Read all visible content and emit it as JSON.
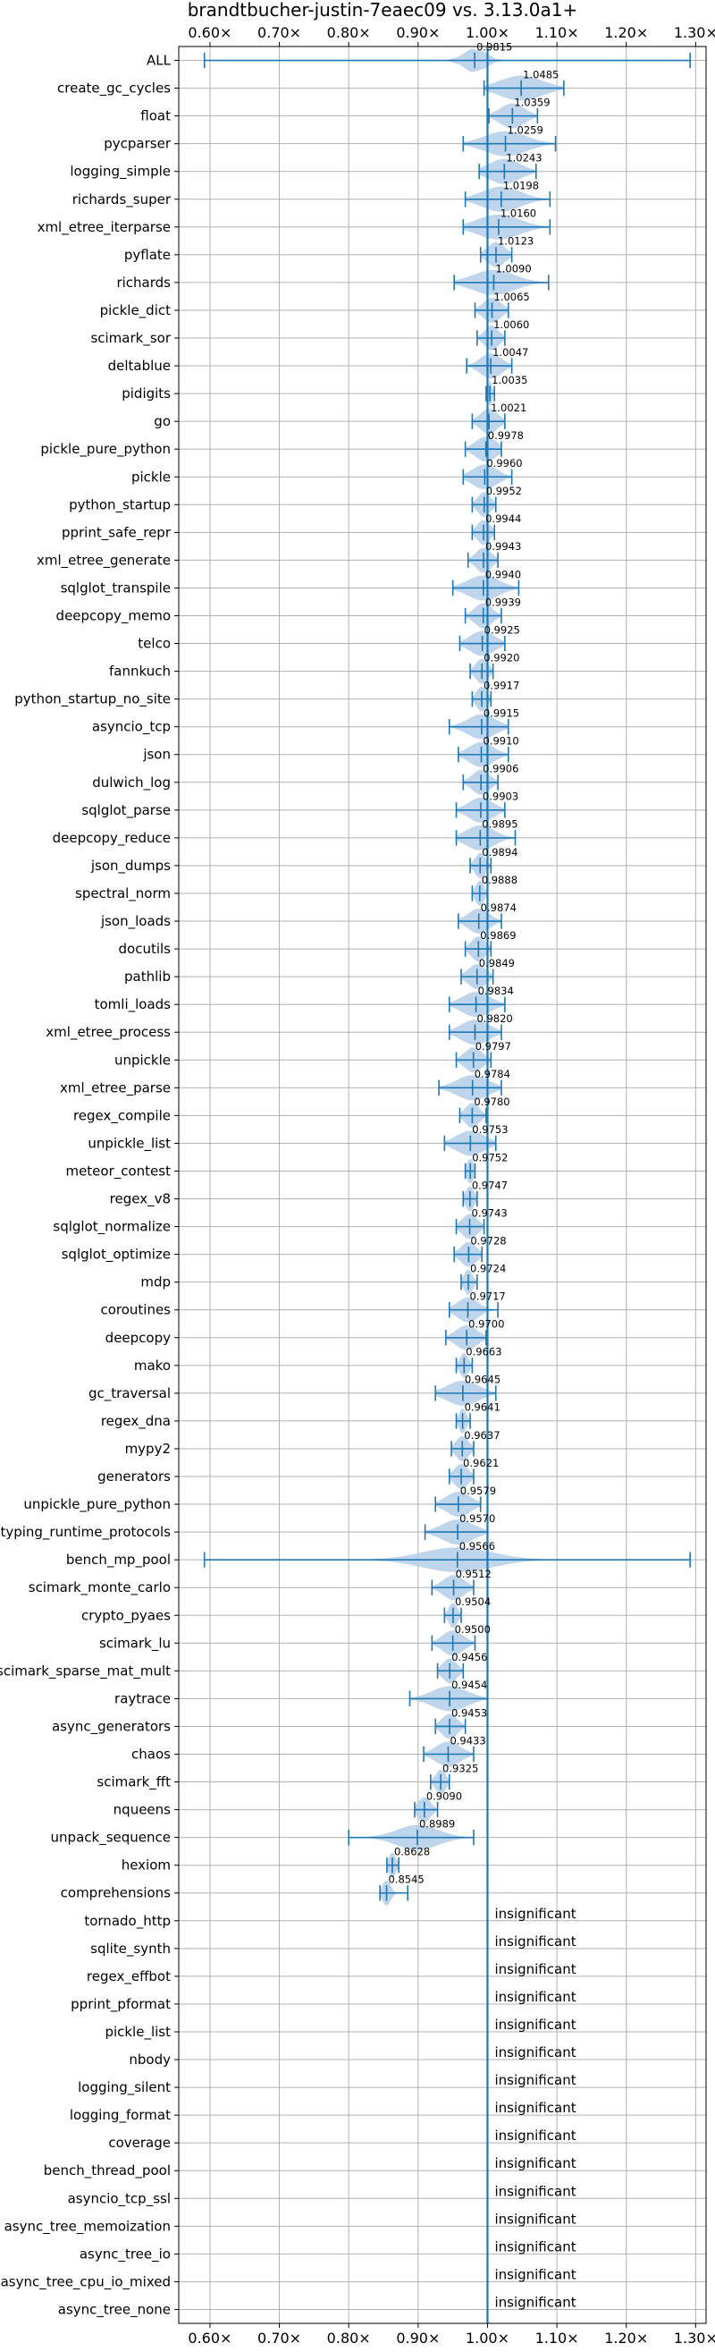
{
  "chart_data": {
    "type": "violin",
    "title": "brandtbucher-justin-7eaec09 vs. 3.13.0a1+",
    "xlabel": "",
    "ylabel": "",
    "xlim": [
      0.555,
      1.315
    ],
    "xticks": [
      0.6,
      0.7,
      0.8,
      0.9,
      1.0,
      1.1,
      1.2,
      1.3
    ],
    "xtick_labels": [
      "0.60×",
      "0.70×",
      "0.80×",
      "0.90×",
      "1.00×",
      "1.10×",
      "1.20×",
      "1.30×"
    ],
    "grid": true,
    "reference_line": 1.0,
    "colors": {
      "fill": "#b7d0ea",
      "line": "#1f77b4",
      "grid": "#b0b0b0"
    },
    "insignificant_label": "insignificant",
    "benchmarks": [
      {
        "name": "ALL",
        "mean": 0.9815,
        "min": 0.592,
        "max": 1.292,
        "spread": 0.03,
        "label": "0.9815"
      },
      {
        "name": "create_gc_cycles",
        "mean": 1.0485,
        "min": 0.995,
        "max": 1.11,
        "spread": 0.06,
        "label": "1.0485"
      },
      {
        "name": "float",
        "mean": 1.0359,
        "min": 1.002,
        "max": 1.072,
        "spread": 0.035,
        "label": "1.0359"
      },
      {
        "name": "pycparser",
        "mean": 1.0259,
        "min": 0.965,
        "max": 1.098,
        "spread": 0.06,
        "label": "1.0259"
      },
      {
        "name": "logging_simple",
        "mean": 1.0243,
        "min": 0.988,
        "max": 1.07,
        "spread": 0.045,
        "label": "1.0243"
      },
      {
        "name": "richards_super",
        "mean": 1.0198,
        "min": 0.968,
        "max": 1.09,
        "spread": 0.055,
        "label": "1.0198"
      },
      {
        "name": "xml_etree_iterparse",
        "mean": 1.016,
        "min": 0.965,
        "max": 1.09,
        "spread": 0.06,
        "label": "1.0160"
      },
      {
        "name": "pyflate",
        "mean": 1.0123,
        "min": 0.99,
        "max": 1.035,
        "spread": 0.025,
        "label": "1.0123"
      },
      {
        "name": "richards",
        "mean": 1.009,
        "min": 0.952,
        "max": 1.088,
        "spread": 0.06,
        "label": "1.0090"
      },
      {
        "name": "pickle_dict",
        "mean": 1.0065,
        "min": 0.982,
        "max": 1.03,
        "spread": 0.025,
        "label": "1.0065"
      },
      {
        "name": "scimark_sor",
        "mean": 1.006,
        "min": 0.985,
        "max": 1.025,
        "spread": 0.02,
        "label": "1.0060"
      },
      {
        "name": "deltablue",
        "mean": 1.0047,
        "min": 0.97,
        "max": 1.035,
        "spread": 0.03,
        "label": "1.0047"
      },
      {
        "name": "pidigits",
        "mean": 1.0035,
        "min": 0.998,
        "max": 1.01,
        "spread": 0.006,
        "label": "1.0035"
      },
      {
        "name": "go",
        "mean": 1.0021,
        "min": 0.978,
        "max": 1.025,
        "spread": 0.025,
        "label": "1.0021"
      },
      {
        "name": "pickle_pure_python",
        "mean": 0.9978,
        "min": 0.968,
        "max": 1.02,
        "spread": 0.03,
        "label": "0.9978"
      },
      {
        "name": "pickle",
        "mean": 0.996,
        "min": 0.965,
        "max": 1.035,
        "spread": 0.035,
        "label": "0.9960"
      },
      {
        "name": "python_startup",
        "mean": 0.9952,
        "min": 0.978,
        "max": 1.012,
        "spread": 0.018,
        "label": "0.9952"
      },
      {
        "name": "pprint_safe_repr",
        "mean": 0.9944,
        "min": 0.978,
        "max": 1.01,
        "spread": 0.018,
        "label": "0.9944"
      },
      {
        "name": "xml_etree_generate",
        "mean": 0.9943,
        "min": 0.972,
        "max": 1.015,
        "spread": 0.022,
        "label": "0.9943"
      },
      {
        "name": "sqlglot_transpile",
        "mean": 0.994,
        "min": 0.95,
        "max": 1.045,
        "spread": 0.045,
        "label": "0.9940"
      },
      {
        "name": "deepcopy_memo",
        "mean": 0.9939,
        "min": 0.968,
        "max": 1.02,
        "spread": 0.025,
        "label": "0.9939"
      },
      {
        "name": "telco",
        "mean": 0.9925,
        "min": 0.96,
        "max": 1.025,
        "spread": 0.035,
        "label": "0.9925"
      },
      {
        "name": "fannkuch",
        "mean": 0.992,
        "min": 0.975,
        "max": 1.008,
        "spread": 0.018,
        "label": "0.9920"
      },
      {
        "name": "python_startup_no_site",
        "mean": 0.9917,
        "min": 0.978,
        "max": 1.005,
        "spread": 0.015,
        "label": "0.9917"
      },
      {
        "name": "asyncio_tcp",
        "mean": 0.9915,
        "min": 0.945,
        "max": 1.03,
        "spread": 0.04,
        "label": "0.9915"
      },
      {
        "name": "json",
        "mean": 0.991,
        "min": 0.958,
        "max": 1.03,
        "spread": 0.035,
        "label": "0.9910"
      },
      {
        "name": "dulwich_log",
        "mean": 0.9906,
        "min": 0.965,
        "max": 1.015,
        "spread": 0.025,
        "label": "0.9906"
      },
      {
        "name": "sqlglot_parse",
        "mean": 0.9903,
        "min": 0.955,
        "max": 1.025,
        "spread": 0.035,
        "label": "0.9903"
      },
      {
        "name": "deepcopy_reduce",
        "mean": 0.9895,
        "min": 0.955,
        "max": 1.04,
        "spread": 0.04,
        "label": "0.9895"
      },
      {
        "name": "json_dumps",
        "mean": 0.9894,
        "min": 0.975,
        "max": 1.005,
        "spread": 0.015,
        "label": "0.9894"
      },
      {
        "name": "spectral_norm",
        "mean": 0.9888,
        "min": 0.978,
        "max": 1.0,
        "spread": 0.012,
        "label": "0.9888"
      },
      {
        "name": "json_loads",
        "mean": 0.9874,
        "min": 0.958,
        "max": 1.02,
        "spread": 0.03,
        "label": "0.9874"
      },
      {
        "name": "docutils",
        "mean": 0.9869,
        "min": 0.968,
        "max": 1.005,
        "spread": 0.02,
        "label": "0.9869"
      },
      {
        "name": "pathlib",
        "mean": 0.9849,
        "min": 0.962,
        "max": 1.008,
        "spread": 0.025,
        "label": "0.9849"
      },
      {
        "name": "tomli_loads",
        "mean": 0.9834,
        "min": 0.945,
        "max": 1.025,
        "spread": 0.04,
        "label": "0.9834"
      },
      {
        "name": "xml_etree_process",
        "mean": 0.982,
        "min": 0.945,
        "max": 1.02,
        "spread": 0.04,
        "label": "0.9820"
      },
      {
        "name": "unpickle",
        "mean": 0.9797,
        "min": 0.955,
        "max": 1.005,
        "spread": 0.025,
        "label": "0.9797"
      },
      {
        "name": "xml_etree_parse",
        "mean": 0.9784,
        "min": 0.93,
        "max": 1.02,
        "spread": 0.045,
        "label": "0.9784"
      },
      {
        "name": "regex_compile",
        "mean": 0.978,
        "min": 0.96,
        "max": 0.998,
        "spread": 0.02,
        "label": "0.9780"
      },
      {
        "name": "unpickle_list",
        "mean": 0.9753,
        "min": 0.938,
        "max": 1.012,
        "spread": 0.04,
        "label": "0.9753"
      },
      {
        "name": "meteor_contest",
        "mean": 0.9752,
        "min": 0.968,
        "max": 0.982,
        "spread": 0.01,
        "label": "0.9752"
      },
      {
        "name": "regex_v8",
        "mean": 0.9747,
        "min": 0.965,
        "max": 0.985,
        "spread": 0.012,
        "label": "0.9747"
      },
      {
        "name": "sqlglot_normalize",
        "mean": 0.9743,
        "min": 0.955,
        "max": 0.995,
        "spread": 0.022,
        "label": "0.9743"
      },
      {
        "name": "sqlglot_optimize",
        "mean": 0.9728,
        "min": 0.952,
        "max": 0.992,
        "spread": 0.022,
        "label": "0.9728"
      },
      {
        "name": "mdp",
        "mean": 0.9724,
        "min": 0.962,
        "max": 0.985,
        "spread": 0.012,
        "label": "0.9724"
      },
      {
        "name": "coroutines",
        "mean": 0.9717,
        "min": 0.945,
        "max": 1.015,
        "spread": 0.03,
        "label": "0.9717"
      },
      {
        "name": "deepcopy",
        "mean": 0.97,
        "min": 0.94,
        "max": 0.998,
        "spread": 0.03,
        "label": "0.9700"
      },
      {
        "name": "mako",
        "mean": 0.9663,
        "min": 0.955,
        "max": 0.978,
        "spread": 0.012,
        "label": "0.9663"
      },
      {
        "name": "gc_traversal",
        "mean": 0.9645,
        "min": 0.925,
        "max": 1.012,
        "spread": 0.045,
        "label": "0.9645"
      },
      {
        "name": "regex_dna",
        "mean": 0.9641,
        "min": 0.955,
        "max": 0.975,
        "spread": 0.01,
        "label": "0.9641"
      },
      {
        "name": "mypy2",
        "mean": 0.9637,
        "min": 0.948,
        "max": 0.98,
        "spread": 0.018,
        "label": "0.9637"
      },
      {
        "name": "generators",
        "mean": 0.9621,
        "min": 0.945,
        "max": 0.98,
        "spread": 0.02,
        "label": "0.9621"
      },
      {
        "name": "unpickle_pure_python",
        "mean": 0.9579,
        "min": 0.925,
        "max": 0.99,
        "spread": 0.035,
        "label": "0.9579"
      },
      {
        "name": "typing_runtime_protocols",
        "mean": 0.957,
        "min": 0.91,
        "max": 1.0,
        "spread": 0.045,
        "label": "0.9570"
      },
      {
        "name": "bench_mp_pool",
        "mean": 0.9566,
        "min": 0.592,
        "max": 1.292,
        "spread": 0.1,
        "label": "0.9566"
      },
      {
        "name": "scimark_monte_carlo",
        "mean": 0.9512,
        "min": 0.92,
        "max": 0.98,
        "spread": 0.03,
        "label": "0.9512"
      },
      {
        "name": "crypto_pyaes",
        "mean": 0.9504,
        "min": 0.938,
        "max": 0.962,
        "spread": 0.012,
        "label": "0.9504"
      },
      {
        "name": "scimark_lu",
        "mean": 0.95,
        "min": 0.92,
        "max": 0.982,
        "spread": 0.03,
        "label": "0.9500"
      },
      {
        "name": "scimark_sparse_mat_mult",
        "mean": 0.9456,
        "min": 0.928,
        "max": 0.965,
        "spread": 0.02,
        "label": "0.9456"
      },
      {
        "name": "raytrace",
        "mean": 0.9454,
        "min": 0.888,
        "max": 1.0,
        "spread": 0.05,
        "label": "0.9454"
      },
      {
        "name": "async_generators",
        "mean": 0.9453,
        "min": 0.925,
        "max": 0.968,
        "spread": 0.022,
        "label": "0.9453"
      },
      {
        "name": "chaos",
        "mean": 0.9433,
        "min": 0.908,
        "max": 0.98,
        "spread": 0.035,
        "label": "0.9433"
      },
      {
        "name": "scimark_fft",
        "mean": 0.9325,
        "min": 0.918,
        "max": 0.945,
        "spread": 0.014,
        "label": "0.9325"
      },
      {
        "name": "nqueens",
        "mean": 0.909,
        "min": 0.895,
        "max": 0.928,
        "spread": 0.018,
        "label": "0.9090"
      },
      {
        "name": "unpack_sequence",
        "mean": 0.8989,
        "min": 0.8,
        "max": 0.98,
        "spread": 0.06,
        "label": "0.8989"
      },
      {
        "name": "hexiom",
        "mean": 0.8628,
        "min": 0.855,
        "max": 0.872,
        "spread": 0.01,
        "label": "0.8628"
      },
      {
        "name": "comprehensions",
        "mean": 0.8545,
        "min": 0.845,
        "max": 0.885,
        "spread": 0.012,
        "label": "0.8545"
      },
      {
        "name": "tornado_http",
        "insignificant": true
      },
      {
        "name": "sqlite_synth",
        "insignificant": true
      },
      {
        "name": "regex_effbot",
        "insignificant": true
      },
      {
        "name": "pprint_pformat",
        "insignificant": true
      },
      {
        "name": "pickle_list",
        "insignificant": true
      },
      {
        "name": "nbody",
        "insignificant": true
      },
      {
        "name": "logging_silent",
        "insignificant": true
      },
      {
        "name": "logging_format",
        "insignificant": true
      },
      {
        "name": "coverage",
        "insignificant": true
      },
      {
        "name": "bench_thread_pool",
        "insignificant": true
      },
      {
        "name": "asyncio_tcp_ssl",
        "insignificant": true
      },
      {
        "name": "async_tree_memoization",
        "insignificant": true
      },
      {
        "name": "async_tree_io",
        "insignificant": true
      },
      {
        "name": "async_tree_cpu_io_mixed",
        "insignificant": true
      },
      {
        "name": "async_tree_none",
        "insignificant": true
      }
    ]
  }
}
